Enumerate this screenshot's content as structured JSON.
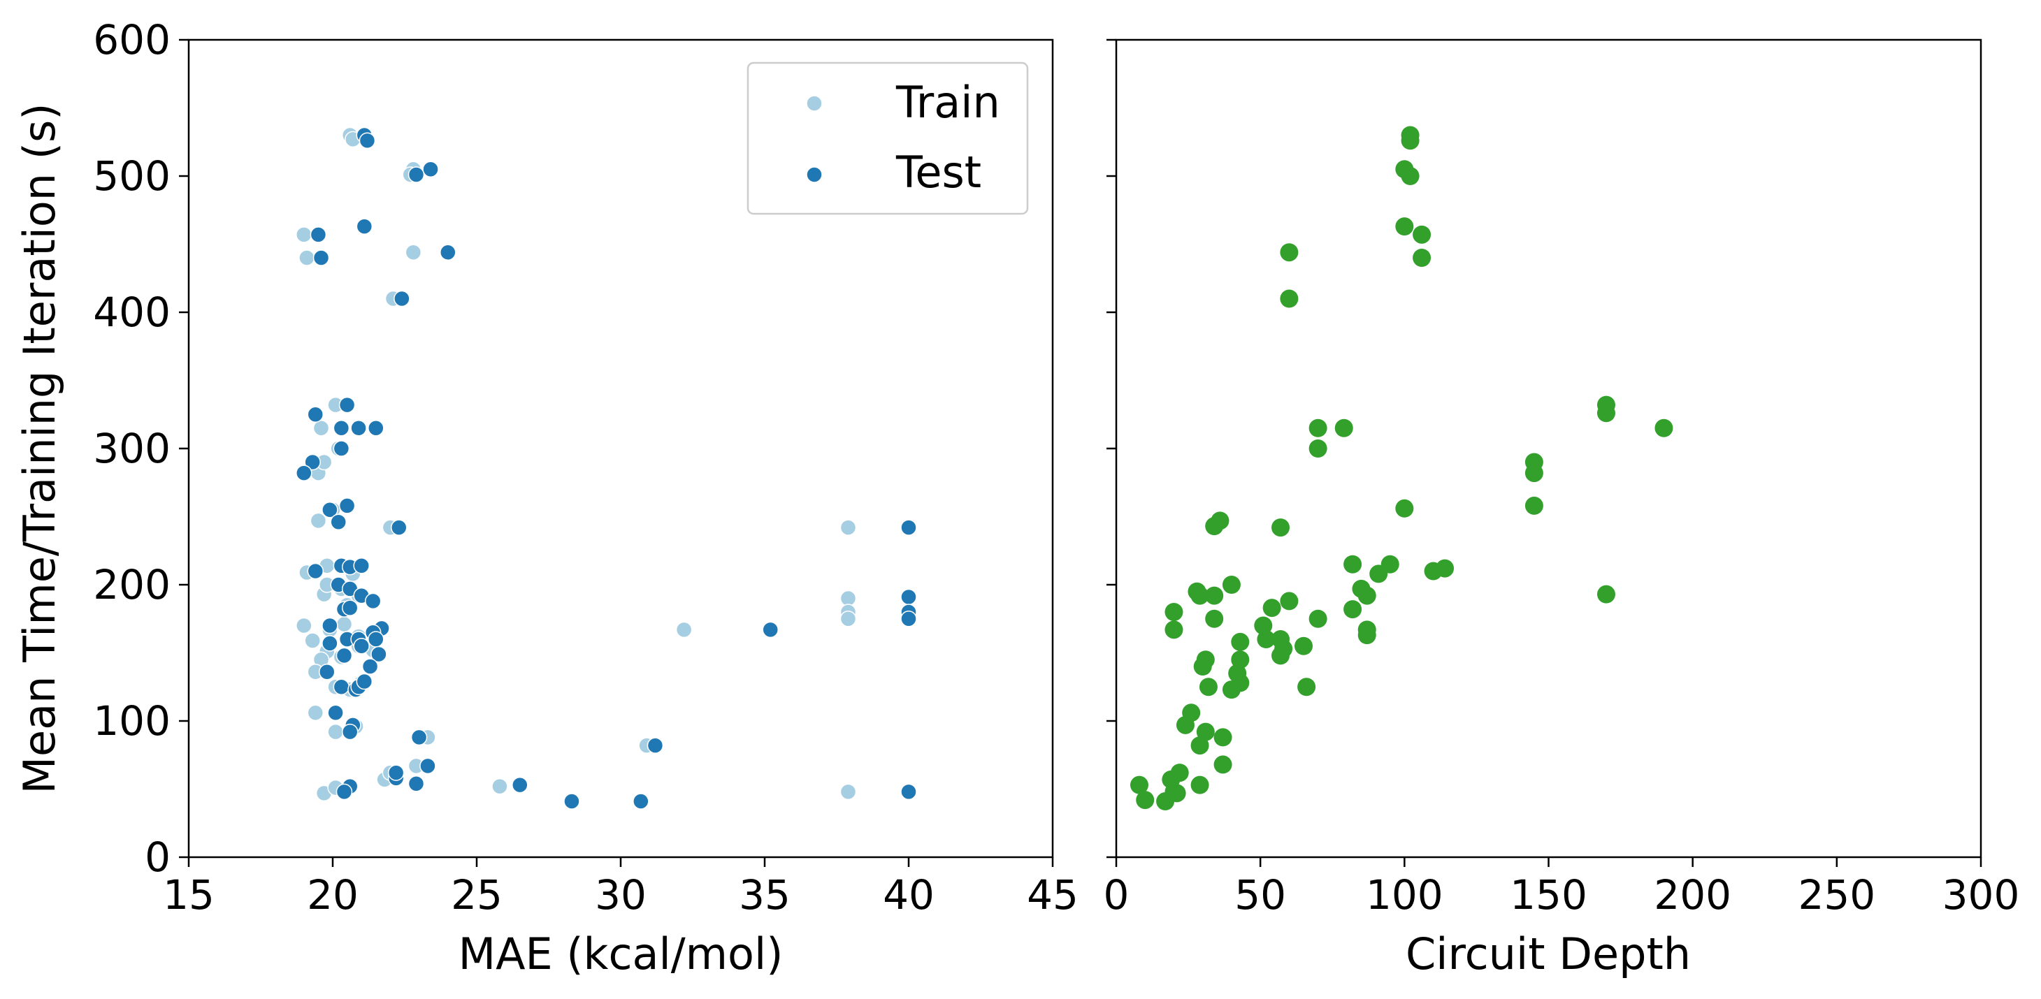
{
  "chart_data": [
    {
      "type": "scatter",
      "xlabel": "MAE (kcal/mol)",
      "ylabel": "Mean Time/Training Iteration (s)",
      "xlim": [
        15,
        45
      ],
      "ylim": [
        0,
        600
      ],
      "xticks": [
        "15",
        "20",
        "25",
        "30",
        "35",
        "40",
        "45"
      ],
      "yticks": [
        "0",
        "100",
        "200",
        "300",
        "400",
        "500",
        "600"
      ],
      "legend": {
        "placement": "top-right",
        "entries": [
          "Train",
          "Test"
        ]
      },
      "grid": false,
      "series": [
        {
          "name": "Train",
          "color": "#a6cee3",
          "points": [
            [
              20.6,
              530
            ],
            [
              20.7,
              527
            ],
            [
              22.8,
              505
            ],
            [
              22.7,
              501
            ],
            [
              19.0,
              457
            ],
            [
              19.1,
              440
            ],
            [
              22.8,
              444
            ],
            [
              22.1,
              410
            ],
            [
              20.1,
              332
            ],
            [
              19.6,
              315
            ],
            [
              20.2,
              300
            ],
            [
              19.5,
              282
            ],
            [
              19.7,
              290
            ],
            [
              20.0,
              255
            ],
            [
              19.5,
              247
            ],
            [
              22.0,
              242
            ],
            [
              19.1,
              209
            ],
            [
              19.8,
              214
            ],
            [
              19.7,
              193
            ],
            [
              20.3,
              197
            ],
            [
              20.7,
              208
            ],
            [
              19.8,
              200
            ],
            [
              20.5,
              185
            ],
            [
              20.9,
              192
            ],
            [
              19.0,
              170
            ],
            [
              19.9,
              167
            ],
            [
              20.4,
              171
            ],
            [
              20.9,
              162
            ],
            [
              19.3,
              159
            ],
            [
              19.8,
              151
            ],
            [
              20.3,
              147
            ],
            [
              20.9,
              155
            ],
            [
              21.4,
              152
            ],
            [
              19.6,
              145
            ],
            [
              19.4,
              136
            ],
            [
              20.1,
              125
            ],
            [
              20.6,
              123
            ],
            [
              21.0,
              128
            ],
            [
              19.4,
              106
            ],
            [
              20.1,
              92
            ],
            [
              20.8,
              96
            ],
            [
              23.3,
              88
            ],
            [
              19.7,
              47
            ],
            [
              20.1,
              51
            ],
            [
              21.8,
              57
            ],
            [
              22.0,
              62
            ],
            [
              22.9,
              67
            ],
            [
              25.8,
              52
            ],
            [
              30.9,
              82
            ],
            [
              32.2,
              167
            ],
            [
              37.9,
              242
            ],
            [
              37.9,
              190
            ],
            [
              37.9,
              180
            ],
            [
              37.9,
              175
            ],
            [
              37.9,
              48
            ]
          ]
        },
        {
          "name": "Test",
          "color": "#1f78b4",
          "points": [
            [
              21.1,
              530
            ],
            [
              21.2,
              526
            ],
            [
              23.4,
              505
            ],
            [
              22.9,
              501
            ],
            [
              19.5,
              457
            ],
            [
              19.6,
              440
            ],
            [
              24.0,
              444
            ],
            [
              21.1,
              463
            ],
            [
              22.4,
              410
            ],
            [
              20.5,
              332
            ],
            [
              19.4,
              325
            ],
            [
              20.3,
              315
            ],
            [
              20.9,
              315
            ],
            [
              21.5,
              315
            ],
            [
              20.3,
              300
            ],
            [
              19.3,
              290
            ],
            [
              19.0,
              282
            ],
            [
              20.5,
              258
            ],
            [
              19.9,
              255
            ],
            [
              20.2,
              246
            ],
            [
              22.3,
              242
            ],
            [
              19.4,
              210
            ],
            [
              20.3,
              214
            ],
            [
              20.6,
              213
            ],
            [
              21.0,
              214
            ],
            [
              20.2,
              200
            ],
            [
              20.6,
              197
            ],
            [
              21.0,
              192
            ],
            [
              21.4,
              188
            ],
            [
              20.4,
              182
            ],
            [
              20.6,
              183
            ],
            [
              19.9,
              170
            ],
            [
              21.7,
              168
            ],
            [
              20.5,
              160
            ],
            [
              20.9,
              160
            ],
            [
              21.4,
              165
            ],
            [
              21.5,
              160
            ],
            [
              19.9,
              157
            ],
            [
              20.4,
              148
            ],
            [
              21.6,
              149
            ],
            [
              21.0,
              155
            ],
            [
              21.3,
              140
            ],
            [
              19.8,
              136
            ],
            [
              20.3,
              125
            ],
            [
              20.8,
              123
            ],
            [
              20.9,
              125
            ],
            [
              21.1,
              129
            ],
            [
              20.1,
              106
            ],
            [
              20.7,
              97
            ],
            [
              20.6,
              92
            ],
            [
              23.0,
              88
            ],
            [
              20.6,
              52
            ],
            [
              20.4,
              48
            ],
            [
              22.2,
              58
            ],
            [
              22.2,
              62
            ],
            [
              22.9,
              54
            ],
            [
              23.3,
              67
            ],
            [
              26.5,
              53
            ],
            [
              28.3,
              41
            ],
            [
              30.7,
              41
            ],
            [
              31.2,
              82
            ],
            [
              35.2,
              167
            ],
            [
              40.0,
              242
            ],
            [
              40.0,
              191
            ],
            [
              40.0,
              180
            ],
            [
              40.0,
              175
            ],
            [
              40.0,
              48
            ]
          ]
        }
      ]
    },
    {
      "type": "scatter",
      "xlabel": "Circuit Depth",
      "ylabel": "",
      "xlim": [
        0,
        300
      ],
      "ylim": [
        0,
        600
      ],
      "xticks": [
        "0",
        "50",
        "100",
        "150",
        "200",
        "250",
        "300"
      ],
      "grid": false,
      "series": [
        {
          "color": "#33a02c",
          "points": [
            [
              102,
              530
            ],
            [
              102,
              526
            ],
            [
              100,
              505
            ],
            [
              102,
              500
            ],
            [
              100,
              463
            ],
            [
              106,
              457
            ],
            [
              106,
              440
            ],
            [
              60,
              444
            ],
            [
              60,
              410
            ],
            [
              170,
              332
            ],
            [
              170,
              326
            ],
            [
              190,
              315
            ],
            [
              70,
              315
            ],
            [
              79,
              315
            ],
            [
              70,
              300
            ],
            [
              145,
              290
            ],
            [
              145,
              282
            ],
            [
              145,
              258
            ],
            [
              100,
              256
            ],
            [
              36,
              247
            ],
            [
              34,
              243
            ],
            [
              57,
              242
            ],
            [
              82,
              215
            ],
            [
              95,
              215
            ],
            [
              114,
              212
            ],
            [
              110,
              210
            ],
            [
              91,
              208
            ],
            [
              40,
              200
            ],
            [
              85,
              197
            ],
            [
              170,
              193
            ],
            [
              28,
              195
            ],
            [
              29,
              192
            ],
            [
              34,
              192
            ],
            [
              87,
              192
            ],
            [
              60,
              188
            ],
            [
              82,
              182
            ],
            [
              20,
              180
            ],
            [
              54,
              183
            ],
            [
              34,
              175
            ],
            [
              70,
              175
            ],
            [
              51,
              170
            ],
            [
              20,
              167
            ],
            [
              87,
              167
            ],
            [
              87,
              163
            ],
            [
              52,
              160
            ],
            [
              57,
              160
            ],
            [
              43,
              158
            ],
            [
              65,
              155
            ],
            [
              58,
              153
            ],
            [
              57,
              148
            ],
            [
              31,
              145
            ],
            [
              43,
              145
            ],
            [
              30,
              140
            ],
            [
              42,
              135
            ],
            [
              43,
              128
            ],
            [
              32,
              125
            ],
            [
              40,
              123
            ],
            [
              66,
              125
            ],
            [
              26,
              106
            ],
            [
              24,
              97
            ],
            [
              31,
              92
            ],
            [
              37,
              88
            ],
            [
              29,
              82
            ],
            [
              37,
              68
            ],
            [
              22,
              62
            ],
            [
              19,
              57
            ],
            [
              29,
              53
            ],
            [
              8,
              53
            ],
            [
              20,
              48
            ],
            [
              10,
              42
            ],
            [
              17,
              41
            ],
            [
              21,
              47
            ]
          ]
        }
      ]
    }
  ]
}
